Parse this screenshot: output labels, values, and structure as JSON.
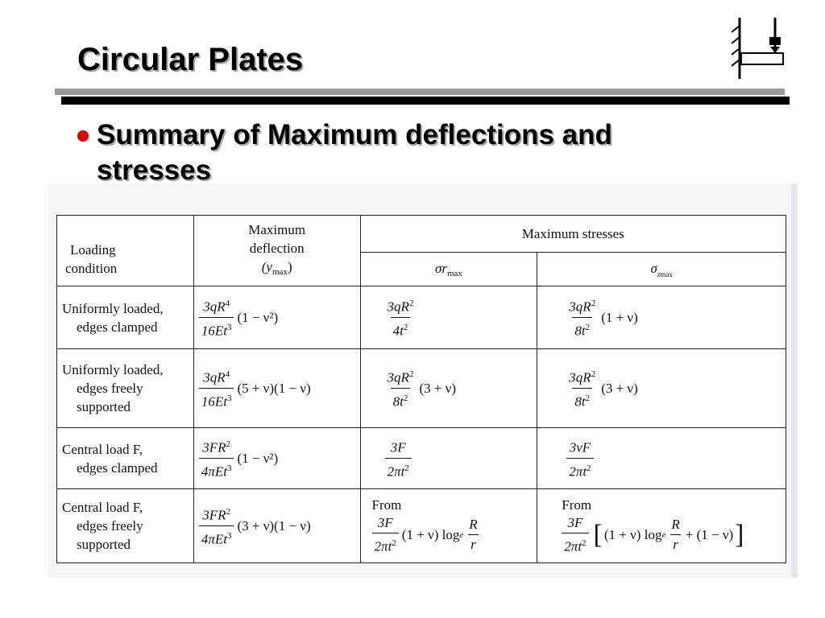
{
  "slide": {
    "title": "Circular Plates",
    "bullet": "Summary of Maximum deflections and stresses"
  },
  "table": {
    "header": {
      "condition": [
        "Loading",
        "condition"
      ],
      "deflection": [
        "Maximum",
        "deflection",
        "(y",
        "max",
        ")"
      ],
      "stresses": "Maximum stresses",
      "sigma_r": [
        "σ",
        "r",
        "max"
      ],
      "sigma_z": [
        "σ",
        "z",
        "max"
      ]
    },
    "rows": [
      {
        "condition": [
          "Uniformly loaded,",
          "edges clamped"
        ],
        "deflection": {
          "num": "3qR",
          "num_exp": "4",
          "den": "16Et",
          "den_exp": "3",
          "factor": "(1 − ν²)"
        },
        "sigma_r": {
          "num": "3qR",
          "num_exp": "2",
          "den": "4t",
          "den_exp": "2",
          "factor": ""
        },
        "sigma_z": {
          "num": "3qR",
          "num_exp": "2",
          "den": "8t",
          "den_exp": "2",
          "factor": "(1 + ν)"
        }
      },
      {
        "condition": [
          "Uniformly loaded,",
          "edges freely",
          "supported"
        ],
        "deflection": {
          "num": "3qR",
          "num_exp": "4",
          "den": "16Et",
          "den_exp": "3",
          "factor": "(5 + ν)(1 − ν)"
        },
        "sigma_r": {
          "num": "3qR",
          "num_exp": "2",
          "den": "8t",
          "den_exp": "2",
          "factor": "(3 + ν)"
        },
        "sigma_z": {
          "num": "3qR",
          "num_exp": "2",
          "den": "8t",
          "den_exp": "2",
          "factor": "(3 + ν)"
        }
      },
      {
        "condition": [
          "Central load F,",
          "edges clamped"
        ],
        "deflection": {
          "num": "3FR",
          "num_exp": "2",
          "den": "4πEt",
          "den_exp": "3",
          "factor": "(1 − ν²)"
        },
        "sigma_r": {
          "num": "3F",
          "num_exp": "",
          "den": "2πt",
          "den_exp": "2",
          "factor": ""
        },
        "sigma_z": {
          "num": "3νF",
          "num_exp": "",
          "den": "2πt",
          "den_exp": "2",
          "factor": ""
        }
      },
      {
        "condition": [
          "Central load F,",
          "edges freely",
          "supported"
        ],
        "deflection": {
          "num": "3FR",
          "num_exp": "2",
          "den": "4πEt",
          "den_exp": "3",
          "factor": "(3 + ν)(1 − ν)"
        },
        "sigma_r": {
          "from": "From",
          "num": "3F",
          "num_exp": "",
          "den": "2πt",
          "den_exp": "2",
          "factor": "(1 + ν) log",
          "log_sub": "e",
          "frac2_num": "R",
          "frac2_den": "r"
        },
        "sigma_z": {
          "from": "From",
          "num": "3F",
          "num_exp": "",
          "den": "2πt",
          "den_exp": "2",
          "open": "[",
          "factor": "(1 + ν) log",
          "log_sub": "e",
          "frac2_num": "R",
          "frac2_den": "r",
          "tail": "+ (1 − ν)",
          "close": "]"
        }
      }
    ]
  }
}
